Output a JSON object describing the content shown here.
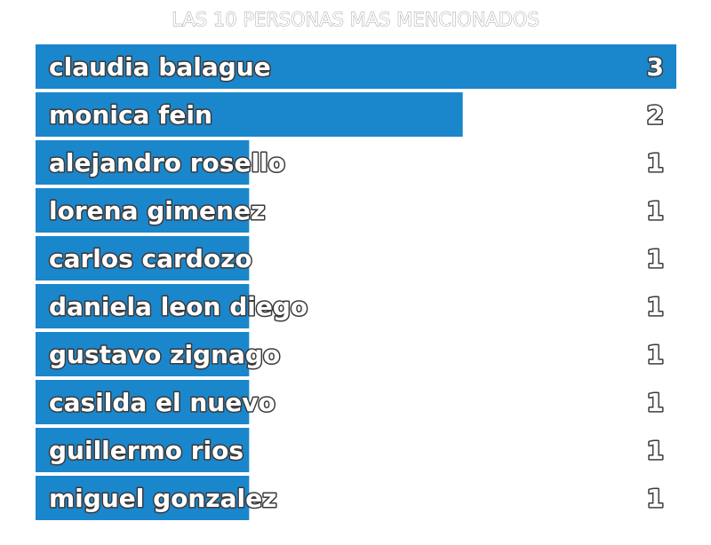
{
  "chart_data": {
    "type": "bar",
    "orientation": "horizontal",
    "title": "LAS 10 PERSONAS MAS MENCIONADOS",
    "categories": [
      "claudia balague",
      "monica fein",
      "alejandro rosello",
      "lorena gimenez",
      "carlos cardozo",
      "daniela leon diego",
      "gustavo zignago",
      "casilda el nuevo",
      "guillermo rios",
      "miguel gonzalez"
    ],
    "values": [
      3,
      2,
      1,
      1,
      1,
      1,
      1,
      1,
      1,
      1
    ],
    "value_labels": [
      "3",
      "2",
      "1",
      "1",
      "1",
      "1",
      "1",
      "1",
      "1",
      "1"
    ],
    "xlim": [
      0,
      3
    ],
    "bar_color": "#1a86cc",
    "grid": false,
    "legend": "none"
  }
}
